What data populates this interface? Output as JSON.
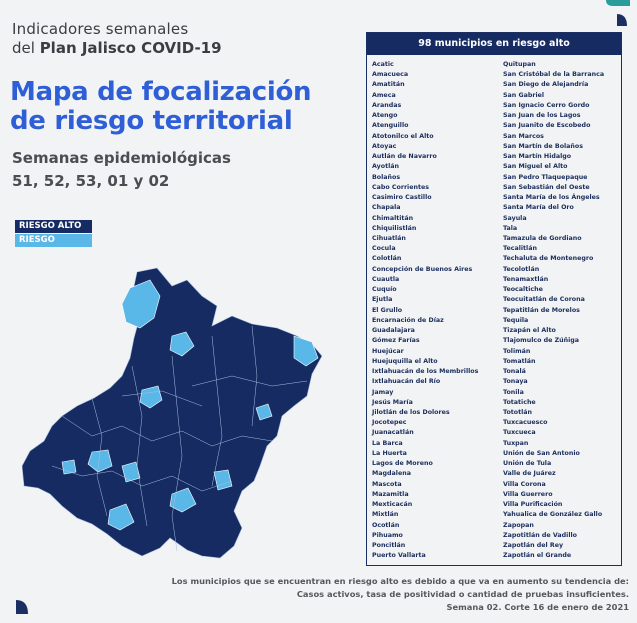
{
  "header": {
    "line1": "Indicadores semanales",
    "line2_prefix": "del ",
    "line2_bold": "Plan Jalisco COVID-19"
  },
  "title": {
    "line1": "Mapa de focalización",
    "line2": "de riesgo territorial"
  },
  "weeks": {
    "line1": "Semanas epidemiológicas",
    "line2": "51, 52, 53, 01 y 02"
  },
  "legend": {
    "items": [
      {
        "label": "RIESGO ALTO",
        "color": "#152b62"
      },
      {
        "label": "RIESGO",
        "color": "#5ab8e8"
      }
    ]
  },
  "colors": {
    "high_risk": "#152b62",
    "risk": "#5ab8e8",
    "title_blue": "#2f5fd6",
    "teal_accent": "#2a9d9a"
  },
  "list": {
    "header": "98 municipios en riesgo alto",
    "col1": [
      "Acatic",
      "Amacueca",
      "Amatitán",
      "Ameca",
      "Arandas",
      "Atengo",
      "Atenguillo",
      "Atotonilco el Alto",
      "Atoyac",
      "Autlán de Navarro",
      "Ayotlán",
      "Bolaños",
      "Cabo Corrientes",
      "Casimiro Castillo",
      "Chapala",
      "Chimaltitán",
      "Chiquilistlán",
      "Cihuatlán",
      "Cocula",
      "Colotlán",
      "Concepción de Buenos Aires",
      "Cuautla",
      "Cuquío",
      "Ejutla",
      "El Grullo",
      "Encarnación de Díaz",
      "Guadalajara",
      "Gómez Farías",
      "Huejúcar",
      "Huejuquilla el Alto",
      "Ixtlahuacán de los Membrillos",
      "Ixtlahuacán del Río",
      "Jamay",
      "Jesús María",
      "Jilotlán de los Dolores",
      "Jocotepec",
      "Juanacatlán",
      "La Barca",
      "La Huerta",
      "Lagos de Moreno",
      "Magdalena",
      "Mascota",
      "Mazamitla",
      "Mexticacán",
      "Mixtlán",
      "Ocotlán",
      "Pihuamo",
      "Poncitlán",
      "Puerto Vallarta"
    ],
    "col2": [
      "Quitupan",
      "San Cristóbal de la Barranca",
      "San Diego de Alejandría",
      "San Gabriel",
      "San Ignacio Cerro Gordo",
      "San Juan de los Lagos",
      "San Juanito de Escobedo",
      "San Marcos",
      "San Martín de Bolaños",
      "San Martín Hidalgo",
      "San Miguel el Alto",
      "San Pedro Tlaquepaque",
      "San Sebastián del Oeste",
      "Santa María de los Ángeles",
      "Santa María del Oro",
      "Sayula",
      "Tala",
      "Tamazula de Gordiano",
      "Tecalitlán",
      "Techaluta de Montenegro",
      "Tecolotlán",
      "Tenamaxtlán",
      "Teocaltiche",
      "Teocuitatlán de Corona",
      "Tepatitlán de Morelos",
      "Tequila",
      "Tizapán el Alto",
      "Tlajomulco de Zúñiga",
      "Tolimán",
      "Tomatlán",
      "Tonalá",
      "Tonaya",
      "Tonila",
      "Totatiche",
      "Tototlán",
      "Tuxcacuesco",
      "Tuxcueca",
      "Tuxpan",
      "Unión de San Antonio",
      "Unión de Tula",
      "Valle de Juárez",
      "Villa Corona",
      "Villa Guerrero",
      "Villa Purificación",
      "Yahualica de González Gallo",
      "Zapopan",
      "Zapotitlán de Vadillo",
      "Zapotlán del Rey",
      "Zapotlán el Grande"
    ]
  },
  "footer": {
    "line1": "Los municipios que se encuentran en riesgo alto es debido a que va en aumento su tendencia de:",
    "line2": "Casos activos, tasa de positividad o cantidad de pruebas insuficientes.",
    "line3": "Semana 02. Corte 16 de enero de 2021"
  }
}
